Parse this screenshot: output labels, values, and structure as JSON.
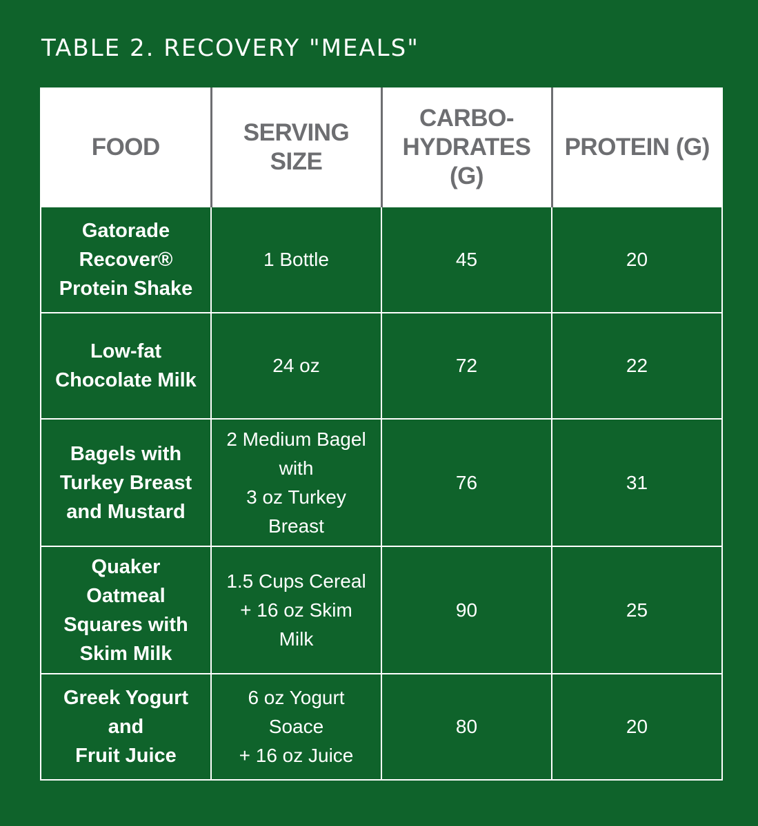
{
  "title": "TABLE 2. RECOVERY \"MEALS\"",
  "columns": [
    "FOOD",
    "SERVING\nSIZE",
    "CARBO-\nHYDRATES\n(G)",
    "PROTEIN (G)"
  ],
  "rows": [
    {
      "food": "Gatorade\nRecover®\nProtein Shake",
      "serving": "1 Bottle",
      "carbs": "45",
      "protein": "20"
    },
    {
      "food": "Low-fat\nChocolate Milk",
      "serving": "24 oz",
      "carbs": "72",
      "protein": "22"
    },
    {
      "food": "Bagels with\nTurkey Breast\nand Mustard",
      "serving": "2 Medium Bagel\nwith\n3 oz Turkey\nBreast",
      "carbs": "76",
      "protein": "31"
    },
    {
      "food": "Quaker\nOatmeal\nSquares with\nSkim Milk",
      "serving": "1.5 Cups Cereal\n+ 16 oz Skim\nMilk",
      "carbs": "90",
      "protein": "25"
    },
    {
      "food": "Greek Yogurt\nand\nFruit Juice",
      "serving": "6 oz Yogurt\nSoace\n+ 16 oz Juice",
      "carbs": "80",
      "protein": "20"
    }
  ],
  "colors": {
    "background": "#0f632b",
    "header_bg": "#ffffff",
    "header_text": "#6d6e71",
    "cell_text": "#ffffff"
  }
}
